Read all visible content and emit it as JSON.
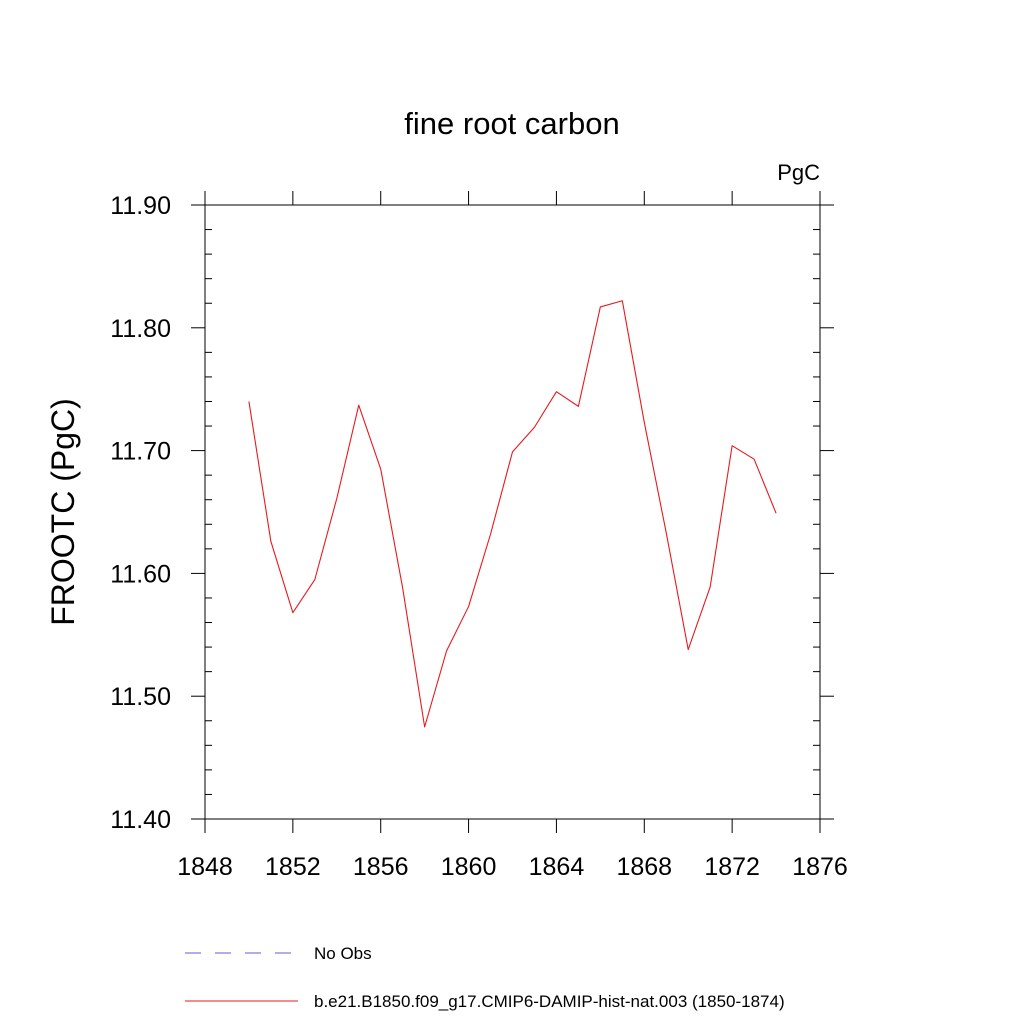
{
  "chart_data": {
    "type": "line",
    "title": "fine root carbon",
    "units_label": "PgC",
    "xlabel": "",
    "ylabel": "FROOTC  (PgC)",
    "xlim": [
      1848,
      1876
    ],
    "ylim": [
      11.4,
      11.9
    ],
    "x_ticks": [
      1848,
      1852,
      1856,
      1860,
      1864,
      1868,
      1872,
      1876
    ],
    "x_tick_labels": [
      "1848",
      "1852",
      "1856",
      "1860",
      "1864",
      "1868",
      "1872",
      "1876"
    ],
    "y_ticks": [
      11.4,
      11.5,
      11.6,
      11.7,
      11.8,
      11.9
    ],
    "y_tick_labels": [
      "11.40",
      "11.50",
      "11.60",
      "11.70",
      "11.80",
      "11.90"
    ],
    "grid": false,
    "legend_position": "bottom",
    "series": [
      {
        "name": "b.e21.B1850.f09_g17.CMIP6-DAMIP-hist-nat.003 (1850-1874)",
        "color": "#e8191e",
        "style": "solid",
        "x": [
          1850,
          1851,
          1852,
          1853,
          1854,
          1855,
          1856,
          1857,
          1858,
          1859,
          1860,
          1861,
          1862,
          1863,
          1864,
          1865,
          1866,
          1867,
          1868,
          1869,
          1870,
          1871,
          1872,
          1873,
          1874
        ],
        "y": [
          11.74,
          11.626,
          11.568,
          11.595,
          11.661,
          11.737,
          11.685,
          11.588,
          11.475,
          11.537,
          11.573,
          11.632,
          11.699,
          11.719,
          11.748,
          11.736,
          11.817,
          11.822,
          11.723,
          11.633,
          11.538,
          11.589,
          11.704,
          11.693,
          11.649
        ]
      }
    ],
    "legend": [
      {
        "label": "No Obs",
        "color": "#6a5acd",
        "style": "dashed"
      },
      {
        "label": "b.e21.B1850.f09_g17.CMIP6-DAMIP-hist-nat.003 (1850-1874)",
        "color": "#e8191e",
        "style": "solid"
      }
    ]
  }
}
